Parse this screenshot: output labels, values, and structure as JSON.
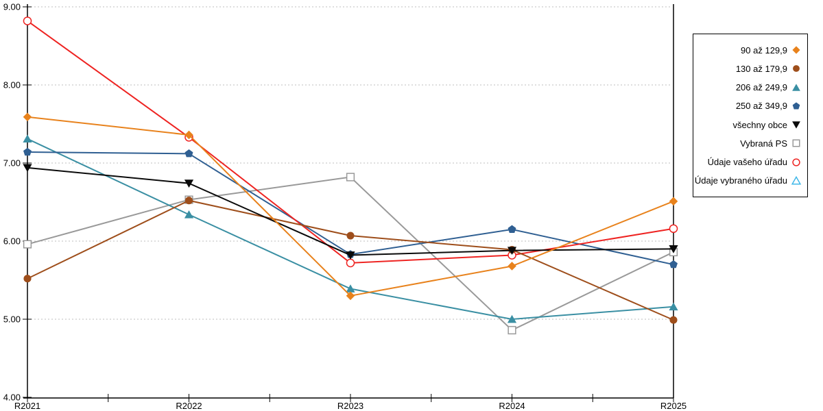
{
  "chart_data": {
    "type": "line",
    "title": "",
    "xlabel": "",
    "ylabel": "",
    "x_categories": [
      "R2021",
      "R2022",
      "R2023",
      "R2024",
      "R2025"
    ],
    "ylim": [
      4,
      9
    ],
    "y_tick_labels": [
      "9.00",
      "8.00",
      "7.00",
      "6.00",
      "5.00",
      "4.00"
    ],
    "y_tick_values": [
      9,
      8,
      7,
      6,
      5,
      4
    ],
    "grid": "horizontal-dashed",
    "legend_position": "right-outside",
    "grid_color": "#bdbdbd",
    "axis_color": "#000000",
    "series": [
      {
        "name": "90 až 129,9",
        "marker": "diamond",
        "fill": "filled",
        "color": "#E8821C",
        "values": [
          7.59,
          7.36,
          5.3,
          5.68,
          6.51
        ]
      },
      {
        "name": "130 až 179,9",
        "marker": "circle",
        "fill": "filled",
        "color": "#9E4E1B",
        "values": [
          5.52,
          6.52,
          6.07,
          5.89,
          4.99
        ]
      },
      {
        "name": "206 až 249,9",
        "marker": "triangle-up",
        "fill": "filled",
        "color": "#3A8FA3",
        "values": [
          7.31,
          6.34,
          5.39,
          5.0,
          5.16
        ]
      },
      {
        "name": "250 až 349,9",
        "marker": "pentagon",
        "fill": "filled",
        "color": "#2F5F92",
        "values": [
          7.14,
          7.12,
          5.83,
          6.15,
          5.7
        ]
      },
      {
        "name": "všechny obce",
        "marker": "triangle-down",
        "fill": "filled",
        "color": "#0A0A0A",
        "values": [
          6.94,
          6.74,
          5.82,
          5.88,
          5.9
        ]
      },
      {
        "name": "Vybraná PS",
        "marker": "square",
        "fill": "open",
        "color": "#999999",
        "values": [
          5.96,
          6.53,
          6.82,
          4.86,
          5.86
        ]
      },
      {
        "name": "Údaje vašeho úřadu",
        "marker": "circle",
        "fill": "open",
        "color": "#EE2321",
        "values": [
          8.82,
          7.33,
          5.72,
          5.82,
          6.16
        ]
      },
      {
        "name": "Údaje vybraného úřadu",
        "marker": "triangle-up",
        "fill": "open",
        "color": "#3FB7E8",
        "values": []
      }
    ]
  }
}
